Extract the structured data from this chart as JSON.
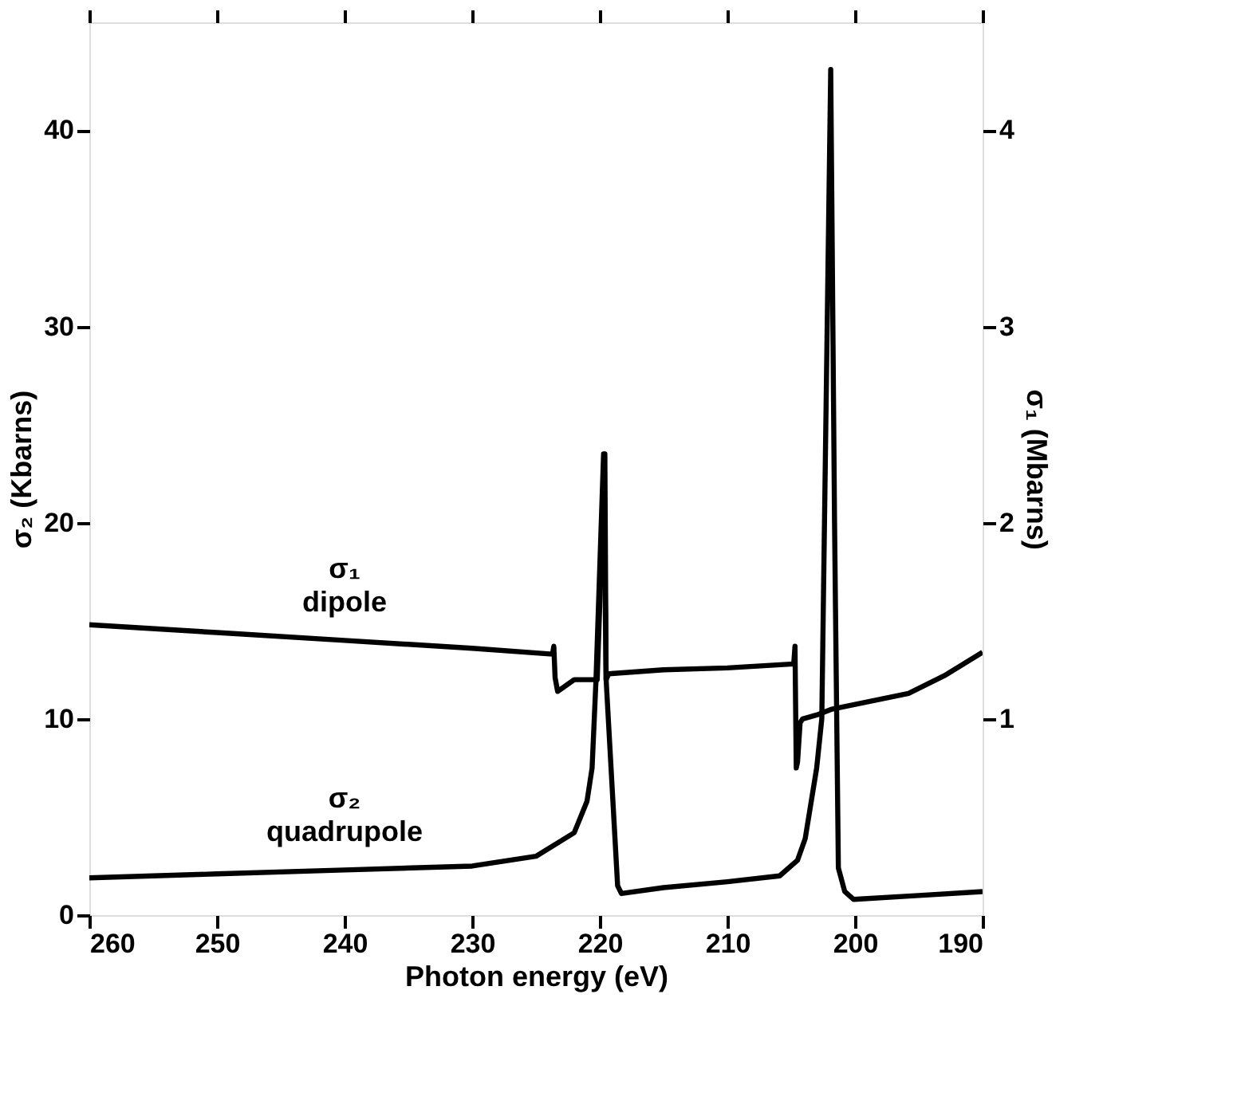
{
  "chart_data": {
    "type": "line",
    "xlabel": "Photon energy (eV)",
    "ylabel": "σ₂ (Kbarns)",
    "y2label": "σ₁ (Mbarns)",
    "xlim": [
      260,
      190
    ],
    "xticks": [
      260,
      250,
      240,
      230,
      220,
      210,
      200,
      190
    ],
    "ylim": [
      0,
      45.5
    ],
    "yticks": [
      0,
      10,
      20,
      30,
      40
    ],
    "y2lim": [
      0,
      4.55
    ],
    "y2ticks": [
      1,
      2,
      3,
      4
    ],
    "line_style": "solid",
    "series": [
      {
        "name": "σ₁ dipole",
        "color": "#000000",
        "axis": "y2",
        "x": [
          260,
          250,
          240,
          230,
          223.7,
          223.6,
          223.5,
          223.3,
          222,
          221,
          220.2,
          219.6,
          219.5,
          219.3,
          215,
          210,
          204.8,
          204.7,
          204.6,
          204.5,
          204.3,
          204.1,
          203,
          201.8,
          198,
          195.8,
          193,
          190
        ],
        "values": [
          1.48,
          1.44,
          1.4,
          1.36,
          1.33,
          1.37,
          1.21,
          1.14,
          1.2,
          1.2,
          1.2,
          2.35,
          1.2,
          1.23,
          1.25,
          1.26,
          1.28,
          1.37,
          0.75,
          0.78,
          0.98,
          1.0,
          1.02,
          1.05,
          1.1,
          1.13,
          1.22,
          1.34
        ]
      },
      {
        "name": "σ₂ quadrupole",
        "color": "#000000",
        "x": [
          260,
          250,
          240,
          230,
          225,
          222,
          221,
          220.6,
          220.3,
          219.7,
          219.5,
          218.6,
          218.3,
          215,
          210,
          205.9,
          204.5,
          203.9,
          203,
          202.6,
          201.9,
          201.6,
          201.3,
          200.8,
          200.1,
          195,
          190
        ],
        "values": [
          1.9,
          2.1,
          2.3,
          2.5,
          3.0,
          4.2,
          5.8,
          7.5,
          11.9,
          23.5,
          12.0,
          1.5,
          1.1,
          1.4,
          1.7,
          2.0,
          2.8,
          3.9,
          7.5,
          10,
          43.1,
          20,
          2.4,
          1.2,
          0.8,
          1.0,
          1.2
        ]
      }
    ]
  }
}
